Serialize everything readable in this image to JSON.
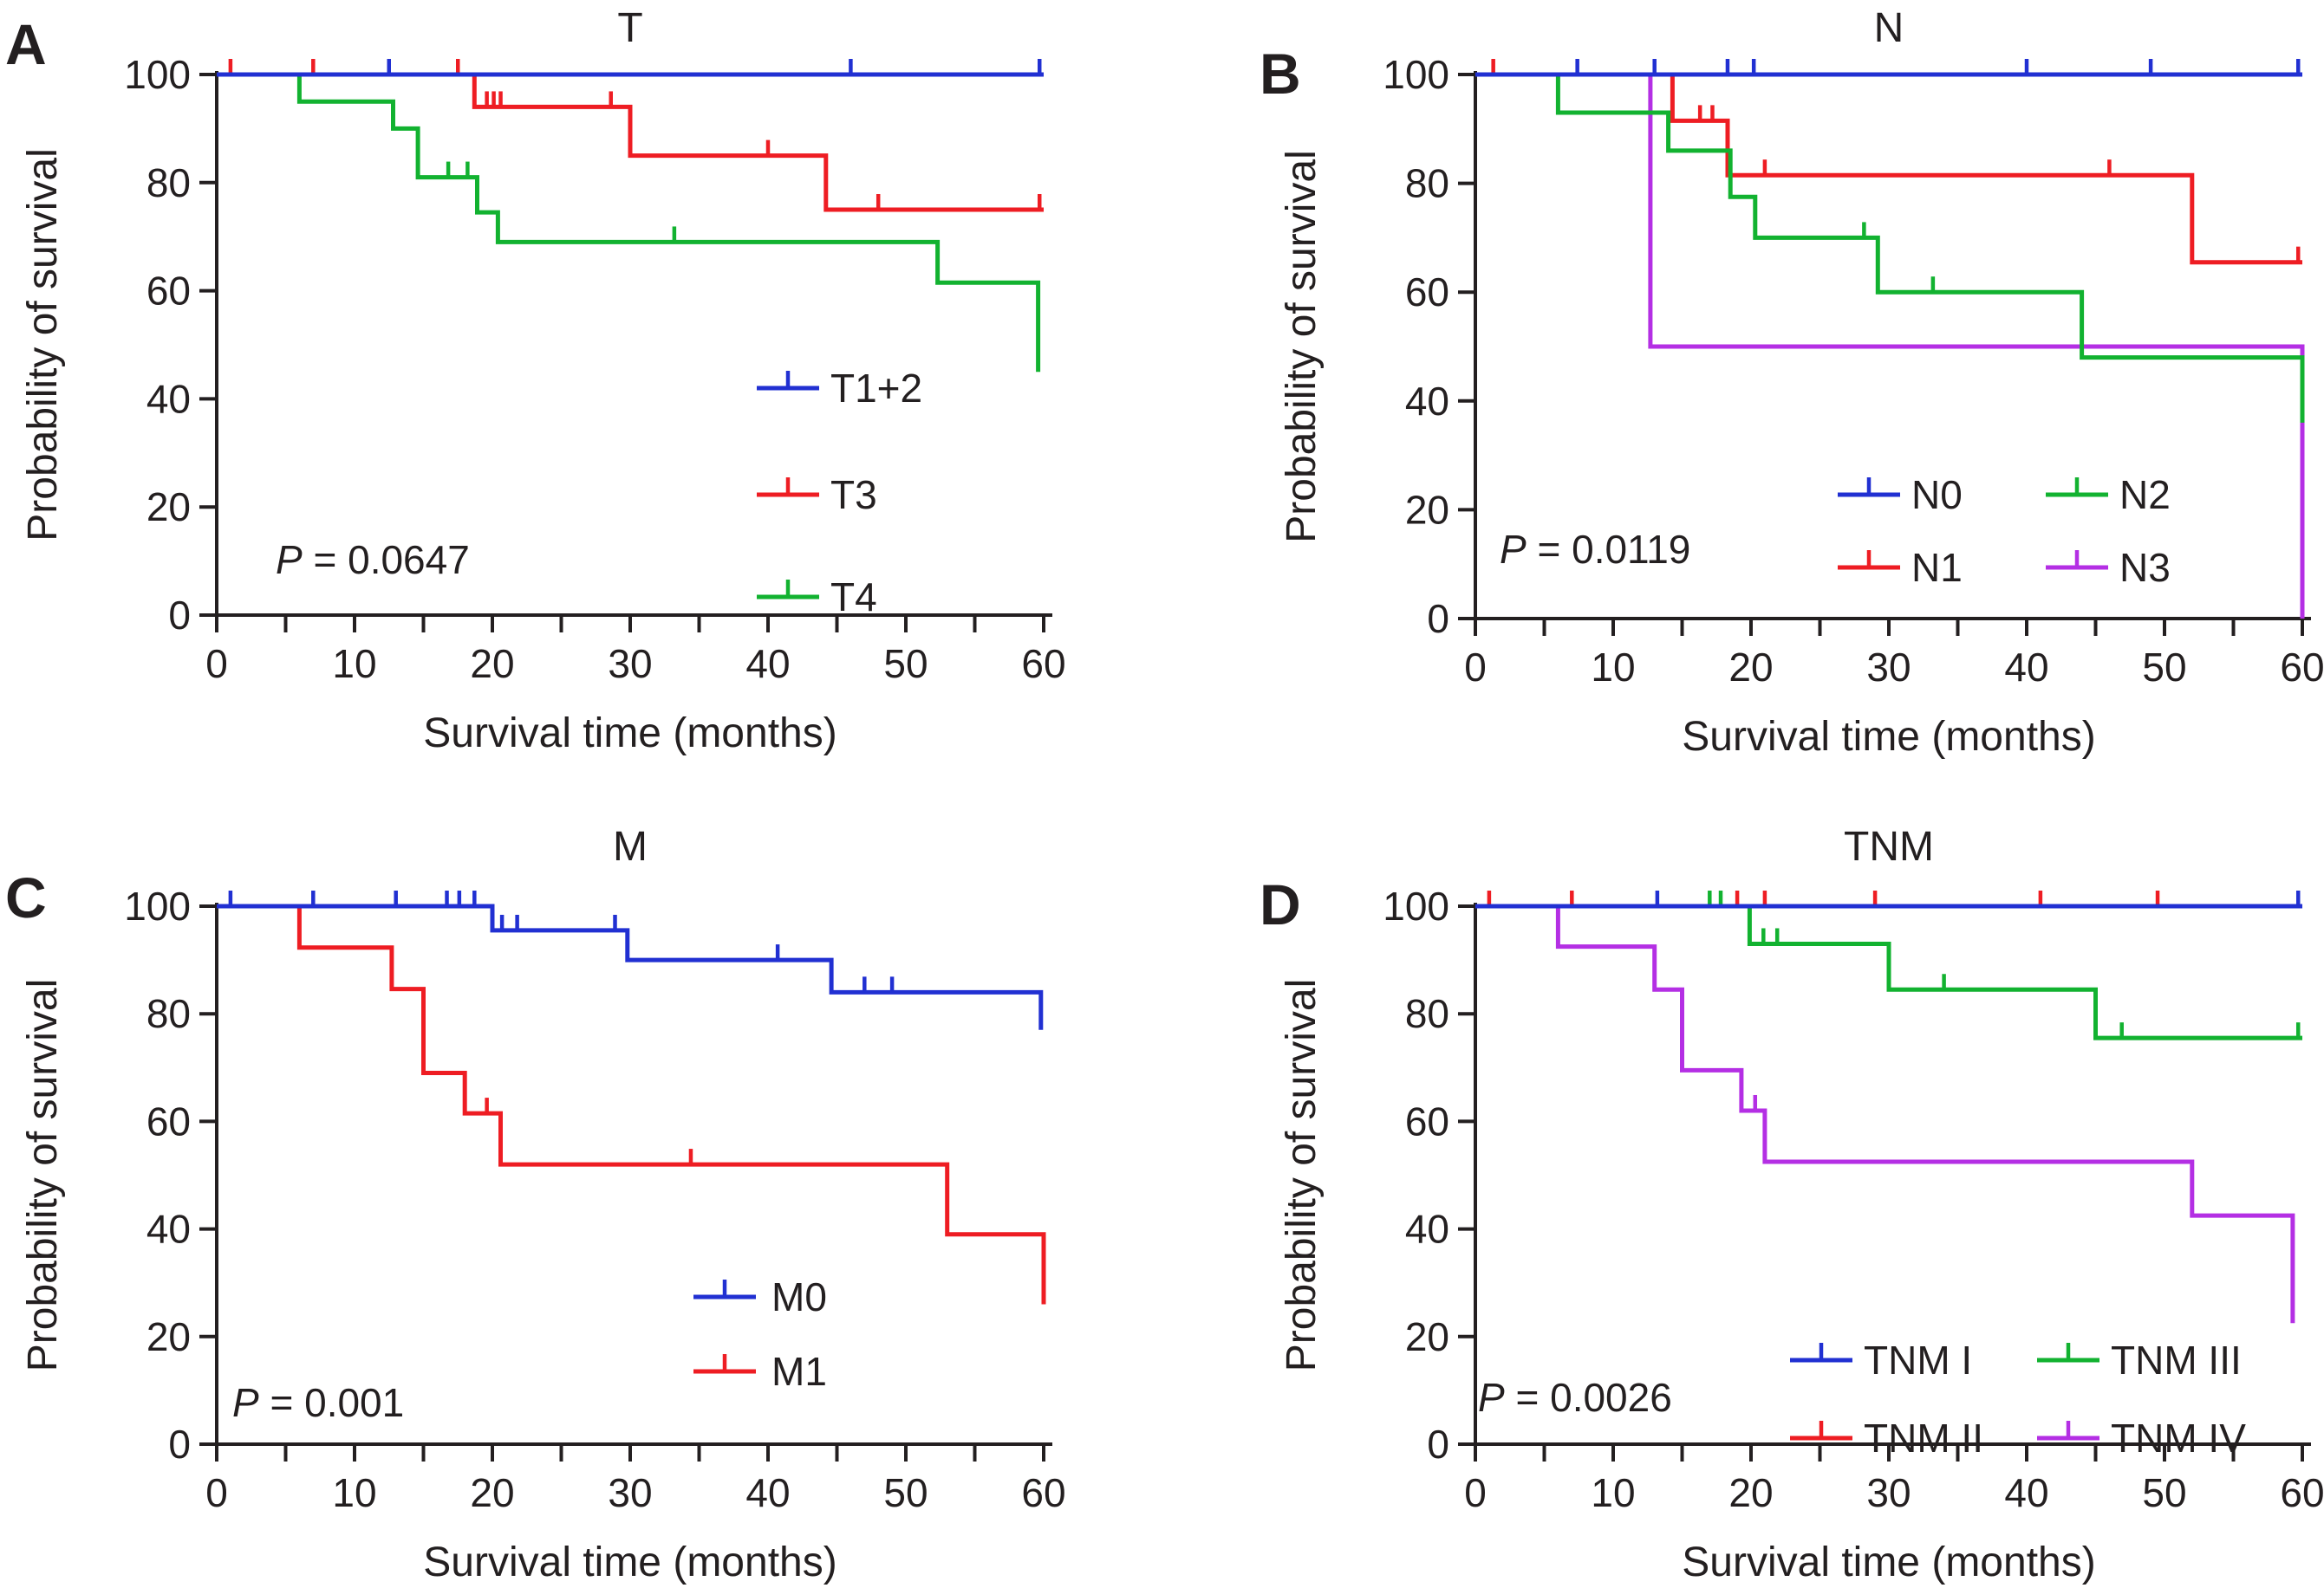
{
  "figure": {
    "description": "Four Kaplan-Meier survival plots by TNM staging",
    "panel_order": [
      "A",
      "B",
      "C",
      "D"
    ]
  },
  "colors": {
    "blue": "#2130d2",
    "red": "#ee1d23",
    "green": "#12b230",
    "purple": "#b42fe4",
    "axis": "#231f20",
    "background": "#ffffff"
  },
  "chart_data": [
    {
      "panel": "A",
      "type": "line",
      "subtype": "kaplan_meier_step",
      "title": "T",
      "xlabel": "Survival time (months)",
      "ylabel": "Probability of survival",
      "xlim": [
        0,
        60
      ],
      "ylim": [
        0,
        100
      ],
      "xticks": [
        0,
        10,
        20,
        30,
        40,
        50,
        60
      ],
      "xtick_labels": [
        "0",
        "10",
        "20",
        "30",
        "40",
        "50",
        "60"
      ],
      "minor_xtick_step": 5,
      "yticks": [
        0,
        20,
        40,
        60,
        80,
        100
      ],
      "ytick_labels": [
        "0",
        "20",
        "40",
        "60",
        "80",
        "100"
      ],
      "grid": false,
      "legend_position": "middle-right-column",
      "p_value_italic": "P",
      "p_value_rest": " = 0.0647",
      "series": [
        {
          "name": "T1+2",
          "color": "blue",
          "points": [
            [
              0,
              100
            ],
            [
              60,
              100
            ]
          ],
          "censor_marks": [
            [
              12.5,
              100
            ],
            [
              46,
              100
            ],
            [
              59.7,
              100
            ]
          ]
        },
        {
          "name": "T3",
          "color": "red",
          "points": [
            [
              0,
              100
            ],
            [
              18.7,
              100
            ],
            [
              18.7,
              94
            ],
            [
              30,
              94
            ],
            [
              30,
              85
            ],
            [
              44.2,
              85
            ],
            [
              44.2,
              75
            ],
            [
              60,
              75
            ]
          ],
          "censor_marks": [
            [
              1,
              100
            ],
            [
              7,
              100
            ],
            [
              17.5,
              100
            ],
            [
              19.6,
              94
            ],
            [
              20.1,
              94
            ],
            [
              20.6,
              94
            ],
            [
              28.6,
              94
            ],
            [
              40,
              85
            ],
            [
              48,
              75
            ],
            [
              59.7,
              75
            ]
          ]
        },
        {
          "name": "T4",
          "color": "green",
          "points": [
            [
              0,
              100
            ],
            [
              6,
              100
            ],
            [
              6,
              95
            ],
            [
              12.8,
              95
            ],
            [
              12.8,
              90
            ],
            [
              14.6,
              90
            ],
            [
              14.6,
              81
            ],
            [
              18.9,
              81
            ],
            [
              18.9,
              74.5
            ],
            [
              20.4,
              74.5
            ],
            [
              20.4,
              69
            ],
            [
              52.3,
              69
            ],
            [
              52.3,
              61.5
            ],
            [
              59.6,
              61.5
            ],
            [
              59.6,
              45
            ]
          ],
          "censor_marks": [
            [
              16.8,
              81
            ],
            [
              18.2,
              81
            ],
            [
              33.2,
              69
            ]
          ]
        }
      ]
    },
    {
      "panel": "B",
      "type": "line",
      "subtype": "kaplan_meier_step",
      "title": "N",
      "xlabel": "Survival time (months)",
      "ylabel": "Probability of survival",
      "xlim": [
        0,
        60
      ],
      "ylim": [
        0,
        100
      ],
      "xticks": [
        0,
        10,
        20,
        30,
        40,
        50,
        60
      ],
      "xtick_labels": [
        "0",
        "10",
        "20",
        "30",
        "40",
        "50",
        "60"
      ],
      "minor_xtick_step": 5,
      "yticks": [
        0,
        20,
        40,
        60,
        80,
        100
      ],
      "ytick_labels": [
        "0",
        "20",
        "40",
        "60",
        "80",
        "100"
      ],
      "grid": false,
      "legend_position": "lower-right-grid",
      "p_value_italic": "P",
      "p_value_rest": " = 0.0119",
      "series": [
        {
          "name": "N0",
          "color": "blue",
          "points": [
            [
              0,
              100
            ],
            [
              60,
              100
            ]
          ],
          "censor_marks": [
            [
              7.4,
              100
            ],
            [
              13,
              100
            ],
            [
              18.3,
              100
            ],
            [
              20.2,
              100
            ],
            [
              40,
              100
            ],
            [
              49,
              100
            ],
            [
              59.7,
              100
            ]
          ]
        },
        {
          "name": "N2",
          "color": "green",
          "points": [
            [
              0,
              100
            ],
            [
              6,
              100
            ],
            [
              6,
              93
            ],
            [
              14,
              93
            ],
            [
              14,
              86
            ],
            [
              18.5,
              86
            ],
            [
              18.5,
              77.5
            ],
            [
              20.3,
              77.5
            ],
            [
              20.3,
              70
            ],
            [
              29.2,
              70
            ],
            [
              29.2,
              60
            ],
            [
              44,
              60
            ],
            [
              44,
              48
            ],
            [
              60,
              48
            ],
            [
              60,
              36
            ]
          ],
          "censor_marks": [
            [
              28.2,
              70
            ],
            [
              33.2,
              60
            ]
          ]
        },
        {
          "name": "N1",
          "color": "red",
          "points": [
            [
              0,
              100
            ],
            [
              14.3,
              100
            ],
            [
              14.3,
              91.5
            ],
            [
              18.3,
              91.5
            ],
            [
              18.3,
              81.5
            ],
            [
              52,
              81.5
            ],
            [
              52,
              65.5
            ],
            [
              60,
              65.5
            ]
          ],
          "censor_marks": [
            [
              1.3,
              100
            ],
            [
              16.3,
              91.5
            ],
            [
              17.2,
              91.5
            ],
            [
              21,
              81.5
            ],
            [
              46,
              81.5
            ],
            [
              59.7,
              65.5
            ]
          ]
        },
        {
          "name": "N3",
          "color": "purple",
          "points": [
            [
              0,
              100
            ],
            [
              12.7,
              100
            ],
            [
              12.7,
              50
            ],
            [
              60,
              50
            ],
            [
              60,
              0
            ]
          ],
          "censor_marks": []
        }
      ]
    },
    {
      "panel": "C",
      "type": "line",
      "subtype": "kaplan_meier_step",
      "title": "M",
      "xlabel": "Survival time (months)",
      "ylabel": "Probability of survival",
      "xlim": [
        0,
        60
      ],
      "ylim": [
        0,
        100
      ],
      "xticks": [
        0,
        10,
        20,
        30,
        40,
        50,
        60
      ],
      "xtick_labels": [
        "0",
        "10",
        "20",
        "30",
        "40",
        "50",
        "60"
      ],
      "minor_xtick_step": 5,
      "yticks": [
        0,
        20,
        40,
        60,
        80,
        100
      ],
      "ytick_labels": [
        "0",
        "20",
        "40",
        "60",
        "80",
        "100"
      ],
      "grid": false,
      "legend_position": "lower-right-column",
      "p_value_italic": "P",
      "p_value_rest": " = 0.001",
      "series": [
        {
          "name": "M0",
          "color": "blue",
          "points": [
            [
              0,
              100
            ],
            [
              20,
              100
            ],
            [
              20,
              95.5
            ],
            [
              29.8,
              95.5
            ],
            [
              29.8,
              90
            ],
            [
              44.6,
              90
            ],
            [
              44.6,
              84
            ],
            [
              59.8,
              84
            ],
            [
              59.8,
              77
            ]
          ],
          "censor_marks": [
            [
              1,
              100
            ],
            [
              7,
              100
            ],
            [
              13,
              100
            ],
            [
              16.7,
              100
            ],
            [
              17.6,
              100
            ],
            [
              18.7,
              100
            ],
            [
              20.7,
              95.5
            ],
            [
              21.8,
              95.5
            ],
            [
              28.9,
              95.5
            ],
            [
              40.7,
              90
            ],
            [
              47,
              84
            ],
            [
              49,
              84
            ]
          ]
        },
        {
          "name": "M1",
          "color": "red",
          "points": [
            [
              0,
              100
            ],
            [
              6,
              100
            ],
            [
              6,
              92.3
            ],
            [
              12.7,
              92.3
            ],
            [
              12.7,
              84.6
            ],
            [
              15,
              84.6
            ],
            [
              15,
              69
            ],
            [
              18,
              69
            ],
            [
              18,
              61.5
            ],
            [
              20.6,
              61.5
            ],
            [
              20.6,
              52
            ],
            [
              53,
              52
            ],
            [
              53,
              39
            ],
            [
              60,
              39
            ],
            [
              60,
              26
            ]
          ],
          "censor_marks": [
            [
              19.6,
              61.5
            ],
            [
              34.4,
              52
            ]
          ]
        }
      ]
    },
    {
      "panel": "D",
      "type": "line",
      "subtype": "kaplan_meier_step",
      "title": "TNM",
      "xlabel": "Survival time (months)",
      "ylabel": "Probability of survival",
      "xlim": [
        0,
        60
      ],
      "ylim": [
        0,
        100
      ],
      "xticks": [
        0,
        10,
        20,
        30,
        40,
        50,
        60
      ],
      "xtick_labels": [
        "0",
        "10",
        "20",
        "30",
        "40",
        "50",
        "60"
      ],
      "minor_xtick_step": 5,
      "yticks": [
        0,
        20,
        40,
        60,
        80,
        100
      ],
      "ytick_labels": [
        "0",
        "20",
        "40",
        "60",
        "80",
        "100"
      ],
      "grid": false,
      "legend_position": "lower-right-grid",
      "p_value_italic": "P",
      "p_value_rest": " = 0.0026",
      "series": [
        {
          "name": "TNM I",
          "color": "blue",
          "points": [
            [
              0,
              100
            ],
            [
              60,
              100
            ]
          ],
          "censor_marks": [
            [
              13.2,
              100
            ],
            [
              59.7,
              100
            ]
          ]
        },
        {
          "name": "TNM III",
          "color": "green",
          "points": [
            [
              0,
              100
            ],
            [
              19.9,
              100
            ],
            [
              19.9,
              93
            ],
            [
              30,
              93
            ],
            [
              30,
              84.5
            ],
            [
              45,
              84.5
            ],
            [
              45,
              75.5
            ],
            [
              60,
              75.5
            ]
          ],
          "censor_marks": [
            [
              17,
              100
            ],
            [
              17.8,
              100
            ],
            [
              20.9,
              93
            ],
            [
              21.9,
              93
            ],
            [
              34,
              84.5
            ],
            [
              46.9,
              75.5
            ],
            [
              59.7,
              75.5
            ]
          ]
        },
        {
          "name": "TNM II",
          "color": "red",
          "points": [
            [
              0,
              100
            ],
            [
              60,
              100
            ]
          ],
          "censor_marks": [
            [
              1,
              100
            ],
            [
              7,
              100
            ],
            [
              19,
              100
            ],
            [
              21,
              100
            ],
            [
              29,
              100
            ],
            [
              41,
              100
            ],
            [
              49.5,
              100
            ]
          ]
        },
        {
          "name": "TNM IV",
          "color": "purple",
          "points": [
            [
              0,
              100
            ],
            [
              6,
              100
            ],
            [
              6,
              92.5
            ],
            [
              13,
              92.5
            ],
            [
              13,
              84.5
            ],
            [
              15,
              84.5
            ],
            [
              15,
              69.5
            ],
            [
              19.3,
              69.5
            ],
            [
              19.3,
              62
            ],
            [
              21,
              62
            ],
            [
              21,
              52.5
            ],
            [
              52,
              52.5
            ],
            [
              52,
              42.5
            ],
            [
              59.3,
              42.5
            ],
            [
              59.3,
              22.5
            ]
          ],
          "censor_marks": [
            [
              20.3,
              62
            ]
          ]
        }
      ]
    }
  ]
}
